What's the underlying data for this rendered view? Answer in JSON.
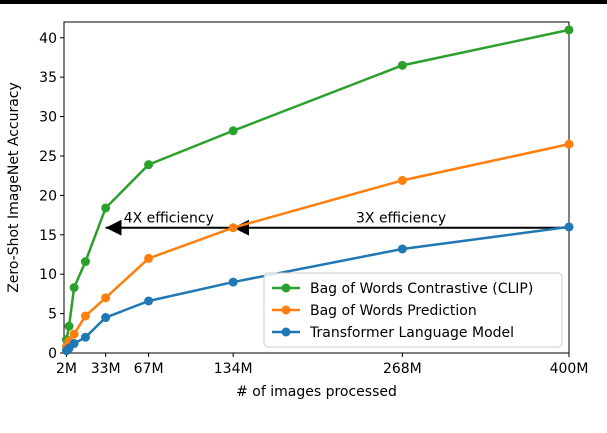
{
  "chart_data": {
    "type": "line",
    "title": "",
    "xlabel": "# of images processed",
    "ylabel": "Zero-Shot ImageNet Accuracy",
    "xlim": [
      0,
      400
    ],
    "ylim": [
      0,
      42
    ],
    "x_ticks": [
      {
        "value": 2,
        "label": "2M"
      },
      {
        "value": 33,
        "label": "33M"
      },
      {
        "value": 67,
        "label": "67M"
      },
      {
        "value": 134,
        "label": "134M"
      },
      {
        "value": 268,
        "label": "268M"
      },
      {
        "value": 400,
        "label": "400M"
      }
    ],
    "y_ticks": [
      0,
      5,
      10,
      15,
      20,
      25,
      30,
      35,
      40
    ],
    "grid": false,
    "legend_position": "lower-right",
    "series": [
      {
        "name": "Bag of Words Contrastive (CLIP)",
        "color": "#2ca02c",
        "x": [
          2,
          4,
          8,
          17,
          33,
          67,
          134,
          268,
          400
        ],
        "y": [
          1.7,
          3.4,
          8.3,
          11.6,
          18.4,
          23.9,
          28.2,
          36.5,
          41.0
        ]
      },
      {
        "name": "Bag of Words Prediction",
        "color": "#ff7f0e",
        "x": [
          2,
          4,
          8,
          17,
          33,
          67,
          134,
          268,
          400
        ],
        "y": [
          0.8,
          1.5,
          2.4,
          4.7,
          7.0,
          12.0,
          15.9,
          21.9,
          26.5
        ]
      },
      {
        "name": "Transformer Language Model",
        "color": "#1f77b4",
        "x": [
          2,
          4,
          8,
          17,
          33,
          67,
          134,
          268,
          400
        ],
        "y": [
          0.3,
          0.6,
          1.2,
          2.0,
          4.5,
          6.6,
          9.0,
          13.2,
          16.0
        ]
      }
    ],
    "annotations": [
      {
        "text": "4X efficiency",
        "x_text": 83,
        "y_text": 17.2,
        "arrow_from": [
          134,
          15.9
        ],
        "arrow_to": [
          33,
          15.9
        ]
      },
      {
        "text": "3X efficiency",
        "x_text": 267,
        "y_text": 17.2,
        "arrow_from": [
          400,
          15.9
        ],
        "arrow_to": [
          134,
          15.9
        ]
      }
    ]
  }
}
